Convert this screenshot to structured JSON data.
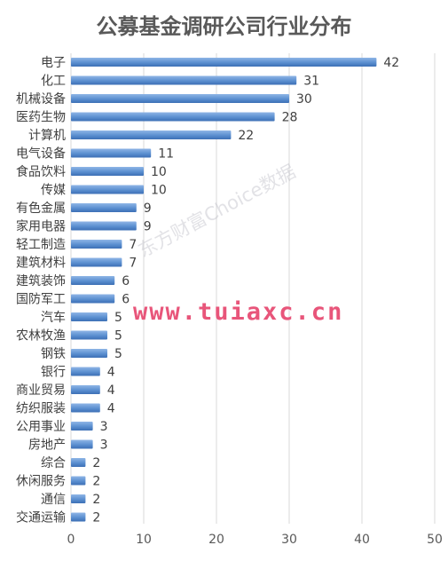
{
  "chart_data": {
    "type": "bar",
    "orientation": "horizontal",
    "title": "公募基金调研公司行业分布",
    "categories": [
      "电子",
      "化工",
      "机械设备",
      "医药生物",
      "计算机",
      "电气设备",
      "食品饮料",
      "传媒",
      "有色金属",
      "家用电器",
      "轻工制造",
      "建筑材料",
      "建筑装饰",
      "国防军工",
      "汽车",
      "农林牧渔",
      "钢铁",
      "银行",
      "商业贸易",
      "纺织服装",
      "公用事业",
      "房地产",
      "综合",
      "休闲服务",
      "通信",
      "交通运输"
    ],
    "values": [
      42,
      31,
      30,
      28,
      22,
      11,
      10,
      10,
      9,
      9,
      7,
      7,
      6,
      6,
      5,
      5,
      5,
      4,
      4,
      4,
      3,
      3,
      2,
      2,
      2,
      2
    ],
    "xlim": [
      0,
      50
    ],
    "xticks": [
      0,
      10,
      20,
      30,
      40,
      50
    ],
    "grid": true,
    "bar_color": "#5b8fd0"
  },
  "watermark": {
    "text": "www.tuiaxc.cn",
    "diagonal": "东方财富Choice数据"
  }
}
